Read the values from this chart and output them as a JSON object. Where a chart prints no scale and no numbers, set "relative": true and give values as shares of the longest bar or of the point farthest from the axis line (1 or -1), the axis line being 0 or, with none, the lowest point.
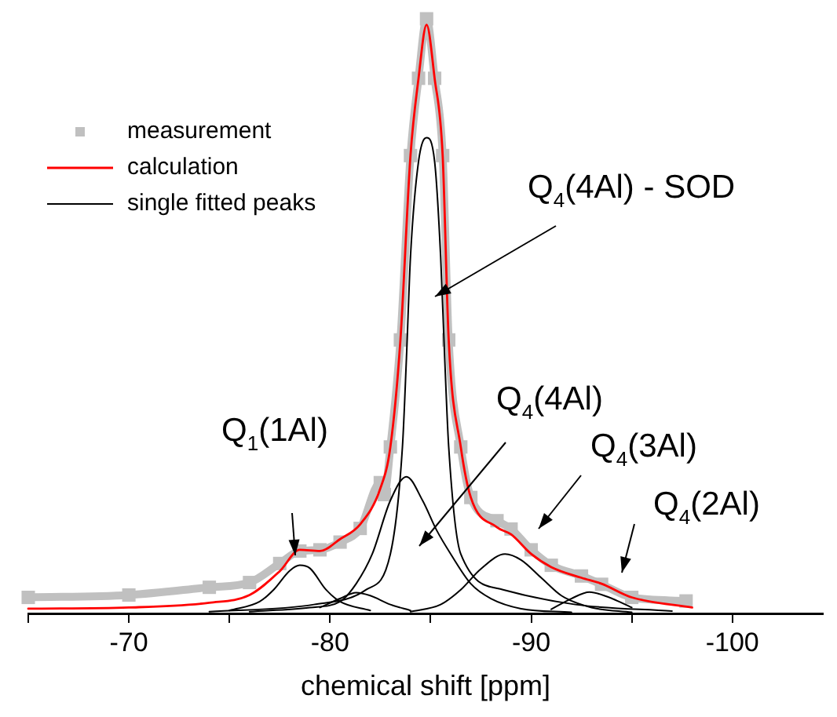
{
  "chart_data": {
    "type": "line",
    "xlabel": "chemical shift [ppm]",
    "relative": true,
    "xlim": [
      -65,
      -104.5
    ],
    "xticks": [
      {
        "value": -65,
        "label": null
      },
      -70,
      {
        "value": -75,
        "label": null
      },
      -80,
      {
        "value": -85,
        "label": null
      },
      -90,
      {
        "value": -95,
        "label": null
      },
      -100
    ],
    "legend": "top left",
    "grid": false,
    "line_style": "solid",
    "annotations": [
      "Q$_{1}$(1Al)",
      "Q$_{4}$(4Al) - SOD",
      "Q$_{4}$(4Al)",
      "Q$_{4}$(3Al)",
      "Q$_{4}$(2Al)"
    ],
    "series": [
      {
        "name": "measurement",
        "color": "#c0c0c0",
        "marker": "square",
        "x": [
          -65,
          -70,
          -74,
          -76,
          -77.5,
          -78.5,
          -79.5,
          -80.5,
          -81.5,
          -82.5,
          -82.7,
          -83,
          -83.5,
          -84,
          -84.4,
          -84.8,
          -85.2,
          -85.6,
          -85.9,
          -86.5,
          -87,
          -88.3,
          -89,
          -90,
          -91,
          -92.5,
          -93.5,
          -95,
          -97.7
        ],
        "values": [
          0.027,
          0.031,
          0.044,
          0.052,
          0.084,
          0.105,
          0.107,
          0.12,
          0.143,
          0.22,
          0.2,
          0.28,
          0.46,
          0.77,
          0.9,
          1,
          0.9,
          0.77,
          0.46,
          0.28,
          0.195,
          0.156,
          0.142,
          0.107,
          0.081,
          0.063,
          0.049,
          0.027,
          0.021
        ]
      },
      {
        "name": "calculation",
        "color": "#ff0000",
        "marker": "none",
        "x": [
          -65,
          -70,
          -74,
          -76,
          -77.5,
          -78.5,
          -79.5,
          -80.5,
          -81.5,
          -82.5,
          -83,
          -83.5,
          -84,
          -84.4,
          -84.8,
          -85.2,
          -85.6,
          -85.9,
          -86.5,
          -87,
          -88.3,
          -89,
          -90,
          -91,
          -92.5,
          -93.5,
          -95,
          -98
        ],
        "values": [
          0.008,
          0.01,
          0.018,
          0.031,
          0.071,
          0.107,
          0.105,
          0.125,
          0.15,
          0.21,
          0.28,
          0.46,
          0.77,
          0.9,
          0.99,
          0.9,
          0.77,
          0.46,
          0.28,
          0.195,
          0.145,
          0.133,
          0.1,
          0.078,
          0.06,
          0.05,
          0.027,
          0.01
        ]
      },
      {
        "name": "single fitted peaks",
        "color": "#000000",
        "marker": "none",
        "x": [
          -75,
          -76.5,
          -77.2,
          -78,
          -78.5,
          -79,
          -79.8,
          -80.5,
          -82
        ],
        "values": [
          0.005,
          0.02,
          0.04,
          0.072,
          0.081,
          0.076,
          0.04,
          0.02,
          0.005
        ]
      },
      {
        "color": "#000000",
        "marker": "none",
        "x": [
          -79.5,
          -80.5,
          -81.3,
          -82,
          -83,
          -84
        ],
        "values": [
          0.01,
          0.025,
          0.035,
          0.03,
          0.015,
          0.005
        ]
      },
      {
        "color": "#000000",
        "marker": "none",
        "x": [
          -76,
          -79,
          -80.5,
          -81.3,
          -82.1,
          -83,
          -83.8,
          -84.6,
          -85.3,
          -86,
          -87,
          -88,
          -89.5,
          -92
        ],
        "values": [
          0.003,
          0.01,
          0.02,
          0.05,
          0.1,
          0.19,
          0.23,
          0.19,
          0.14,
          0.1,
          0.05,
          0.025,
          0.008,
          0.002
        ]
      },
      {
        "color": "#000000",
        "marker": "none",
        "x": [
          -74,
          -79.2,
          -81.8,
          -83,
          -83.6,
          -83.8,
          -84,
          -84.4,
          -84.8,
          -85.2,
          -85.5,
          -85.7,
          -85.9,
          -86.5,
          -88.6,
          -92.2,
          -97
        ],
        "values": [
          0.003,
          0.015,
          0.04,
          0.1,
          0.28,
          0.43,
          0.6,
          0.76,
          0.8,
          0.76,
          0.6,
          0.43,
          0.28,
          0.1,
          0.04,
          0.015,
          0.004
        ]
      },
      {
        "color": "#000000",
        "marker": "none",
        "x": [
          -84,
          -85.5,
          -86.5,
          -87.5,
          -88.7,
          -89.5,
          -90.5,
          -91.5,
          -93,
          -95
        ],
        "values": [
          0.003,
          0.015,
          0.04,
          0.075,
          0.1,
          0.09,
          0.06,
          0.03,
          0.01,
          0.002
        ]
      },
      {
        "color": "#000000",
        "marker": "none",
        "x": [
          -91,
          -92,
          -92.9,
          -93.8,
          -95
        ],
        "values": [
          0.007,
          0.025,
          0.036,
          0.028,
          0.01
        ]
      }
    ]
  }
}
